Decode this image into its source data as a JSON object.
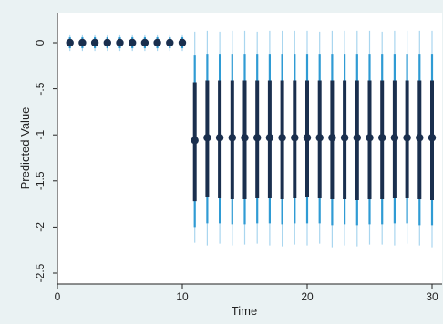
{
  "chart_data": {
    "type": "scatter",
    "title": "",
    "xlabel": "Time",
    "ylabel": "Predicted Value",
    "xlim": [
      0,
      30.5
    ],
    "ylim": [
      -2.5,
      0.15
    ],
    "xticks": [
      0,
      10,
      20,
      30
    ],
    "xtick_labels": [
      "0",
      "10",
      "20",
      "30"
    ],
    "yticks": [
      0,
      -0.5,
      -1,
      -1.5,
      -2,
      -2.5
    ],
    "ytick_labels": [
      "0",
      "-.5",
      "-1",
      "-1.5",
      "-2",
      "-2.5"
    ],
    "grid": false,
    "legend": "none",
    "colors": {
      "background": "#eaf2f3",
      "plot_area": "#ffffff",
      "point": "#1a2f4e",
      "inner_ci": "#1a2f4e",
      "mid_ci": "#2f9bd4",
      "outer_ci": "#a9d6ef"
    },
    "series": [
      {
        "x": [
          1,
          2,
          3,
          4,
          5,
          6,
          7,
          8,
          9,
          10,
          11,
          12,
          13,
          14,
          15,
          16,
          17,
          18,
          19,
          20,
          21,
          22,
          23,
          24,
          25,
          26,
          27,
          28,
          29,
          30
        ],
        "y": [
          0,
          0,
          0,
          0,
          0,
          0,
          0,
          0,
          0,
          0,
          -1.06,
          -1.03,
          -1.03,
          -1.03,
          -1.03,
          -1.03,
          -1.03,
          -1.03,
          -1.03,
          -1.03,
          -1.03,
          -1.03,
          -1.03,
          -1.03,
          -1.03,
          -1.03,
          -1.03,
          -1.03,
          -1.03,
          -1.03
        ],
        "ci_inner_low": [
          -0.03,
          -0.03,
          -0.03,
          -0.03,
          -0.03,
          -0.03,
          -0.03,
          -0.03,
          -0.03,
          -0.03,
          -1.72,
          -1.68,
          -1.69,
          -1.7,
          -1.7,
          -1.69,
          -1.69,
          -1.7,
          -1.69,
          -1.68,
          -1.69,
          -1.7,
          -1.7,
          -1.71,
          -1.7,
          -1.7,
          -1.69,
          -1.69,
          -1.7,
          -1.71
        ],
        "ci_inner_high": [
          0.03,
          0.03,
          0.03,
          0.03,
          0.03,
          0.03,
          0.03,
          0.03,
          0.03,
          0.03,
          -0.43,
          -0.41,
          -0.41,
          -0.41,
          -0.41,
          -0.41,
          -0.41,
          -0.41,
          -0.41,
          -0.41,
          -0.41,
          -0.41,
          -0.41,
          -0.41,
          -0.41,
          -0.41,
          -0.41,
          -0.41,
          -0.41,
          -0.41
        ],
        "ci_mid_low": [
          -0.06,
          -0.06,
          -0.06,
          -0.06,
          -0.06,
          -0.06,
          -0.06,
          -0.06,
          -0.06,
          -0.06,
          -2.0,
          -1.96,
          -1.96,
          -1.97,
          -1.97,
          -1.96,
          -1.96,
          -1.97,
          -1.96,
          -1.96,
          -1.96,
          -1.98,
          -1.97,
          -1.98,
          -1.97,
          -1.97,
          -1.96,
          -1.96,
          -1.98,
          -1.98
        ],
        "ci_mid_high": [
          0.06,
          0.06,
          0.06,
          0.06,
          0.06,
          0.06,
          0.06,
          0.06,
          0.06,
          0.06,
          -0.13,
          -0.12,
          -0.12,
          -0.12,
          -0.12,
          -0.12,
          -0.12,
          -0.12,
          -0.12,
          -0.12,
          -0.12,
          -0.12,
          -0.12,
          -0.12,
          -0.12,
          -0.12,
          -0.12,
          -0.12,
          -0.12,
          -0.12
        ],
        "ci_outer_low": [
          -0.09,
          -0.09,
          -0.09,
          -0.09,
          -0.09,
          -0.09,
          -0.09,
          -0.09,
          -0.09,
          -0.09,
          -2.17,
          -2.2,
          -2.18,
          -2.2,
          -2.19,
          -2.18,
          -2.2,
          -2.21,
          -2.19,
          -2.2,
          -2.18,
          -2.22,
          -2.2,
          -2.21,
          -2.19,
          -2.19,
          -2.2,
          -2.18,
          -2.2,
          -2.22
        ],
        "ci_outer_high": [
          0.09,
          0.09,
          0.09,
          0.09,
          0.09,
          0.09,
          0.09,
          0.09,
          0.09,
          0.09,
          0.12,
          0.13,
          0.12,
          0.13,
          0.13,
          0.12,
          0.13,
          0.13,
          0.13,
          0.13,
          0.12,
          0.13,
          0.13,
          0.13,
          0.13,
          0.12,
          0.13,
          0.13,
          0.13,
          0.13
        ]
      }
    ]
  }
}
